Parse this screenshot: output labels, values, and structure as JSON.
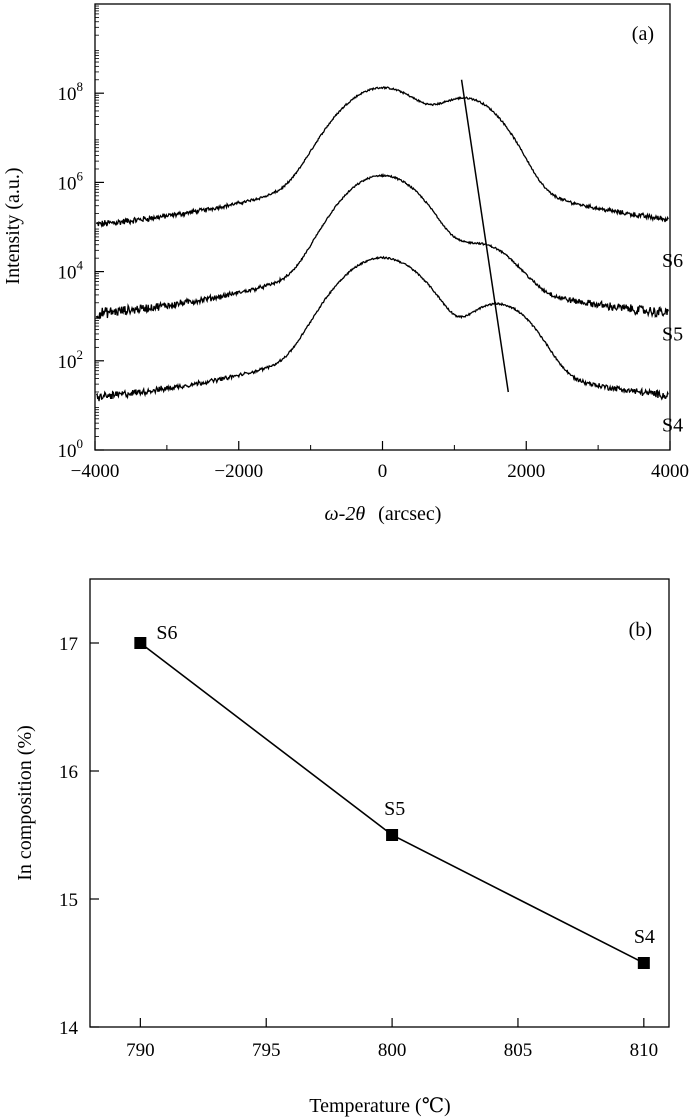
{
  "chart_data": [
    {
      "type": "line",
      "panel_label": "(a)",
      "xlabel_var": "ω-2θ",
      "xlabel_unit": "(arcsec)",
      "ylabel": "Intensity (a.u.)",
      "xlim": [
        -4000,
        4000
      ],
      "ylim": [
        1,
        10000000000
      ],
      "yscale": "log",
      "x_ticks": [
        -4000,
        -2000,
        0,
        2000,
        4000
      ],
      "x_tick_labels": [
        "−4000",
        "−2000",
        "0",
        "2000",
        "4000"
      ],
      "y_ticks": [
        {
          "value": 1,
          "base": "10",
          "exp": "0"
        },
        {
          "value": 100,
          "base": "10",
          "exp": "2"
        },
        {
          "value": 10000,
          "base": "10",
          "exp": "4"
        },
        {
          "value": 1000000,
          "base": "10",
          "exp": "6"
        },
        {
          "value": 100000000,
          "base": "10",
          "exp": "8"
        }
      ],
      "series": [
        {
          "name": "S6",
          "background": 20000,
          "main_peak": {
            "x": 0,
            "y": 130000000,
            "width": 380
          },
          "layer_peak": {
            "x": 1150,
            "y": 75000000,
            "width": 330
          }
        },
        {
          "name": "S5",
          "background": 300,
          "main_peak": {
            "x": 0,
            "y": 1400000,
            "width": 360
          },
          "layer_peak": {
            "x": 1350,
            "y": 35000,
            "width": 330
          }
        },
        {
          "name": "S4",
          "background": 3,
          "main_peak": {
            "x": 0,
            "y": 20000,
            "width": 380
          },
          "layer_peak": {
            "x": 1600,
            "y": 1800,
            "width": 320
          }
        }
      ],
      "guide_line": {
        "x": [
          1100,
          1750
        ],
        "y": [
          200000000,
          20
        ]
      }
    },
    {
      "type": "line",
      "panel_label": "(b)",
      "xlabel": "Temperature (℃)",
      "ylabel": "In composition (%)",
      "xlim": [
        788,
        811
      ],
      "ylim": [
        14,
        17.5
      ],
      "x_ticks": [
        790,
        795,
        800,
        805,
        810
      ],
      "y_ticks": [
        14,
        15,
        16,
        17
      ],
      "points": [
        {
          "x": 790,
          "y": 17.0,
          "label": "S6"
        },
        {
          "x": 800,
          "y": 15.5,
          "label": "S5"
        },
        {
          "x": 810,
          "y": 14.5,
          "label": "S4"
        }
      ]
    }
  ]
}
